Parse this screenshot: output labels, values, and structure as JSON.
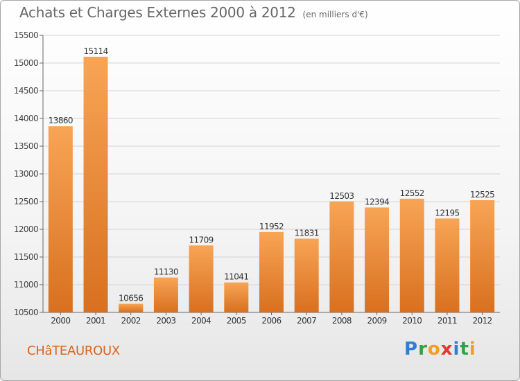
{
  "header": {
    "title": "Achats et Charges Externes 2000 à 2012",
    "unit": "(en milliers d'€)"
  },
  "footer": {
    "city": "CHâTEAUROUX"
  },
  "logo": {
    "letters": [
      {
        "ch": "P",
        "color": "#2f7fd0"
      },
      {
        "ch": "r",
        "color": "#33a04a"
      },
      {
        "ch": "o",
        "color": "#f0a020"
      },
      {
        "ch": "x",
        "color": "#e5362f"
      },
      {
        "ch": "i",
        "color": "#2f7fd0"
      },
      {
        "ch": "t",
        "color": "#33a04a"
      },
      {
        "ch": "i",
        "color": "#f0a020"
      }
    ]
  },
  "chart_data": {
    "type": "bar",
    "categories": [
      "2000",
      "2001",
      "2002",
      "2003",
      "2004",
      "2005",
      "2006",
      "2007",
      "2008",
      "2009",
      "2010",
      "2011",
      "2012"
    ],
    "values": [
      13860,
      15114,
      10656,
      11130,
      11709,
      11041,
      11952,
      11831,
      12503,
      12394,
      12552,
      12195,
      12525
    ],
    "ylim": [
      10500,
      15500
    ],
    "yticks": [
      10500,
      11000,
      11500,
      12000,
      12500,
      13000,
      13500,
      14000,
      14500,
      15000,
      15500
    ],
    "grid": true,
    "bar_color_top": "#f7a555",
    "bar_color_bottom": "#d8701f"
  }
}
